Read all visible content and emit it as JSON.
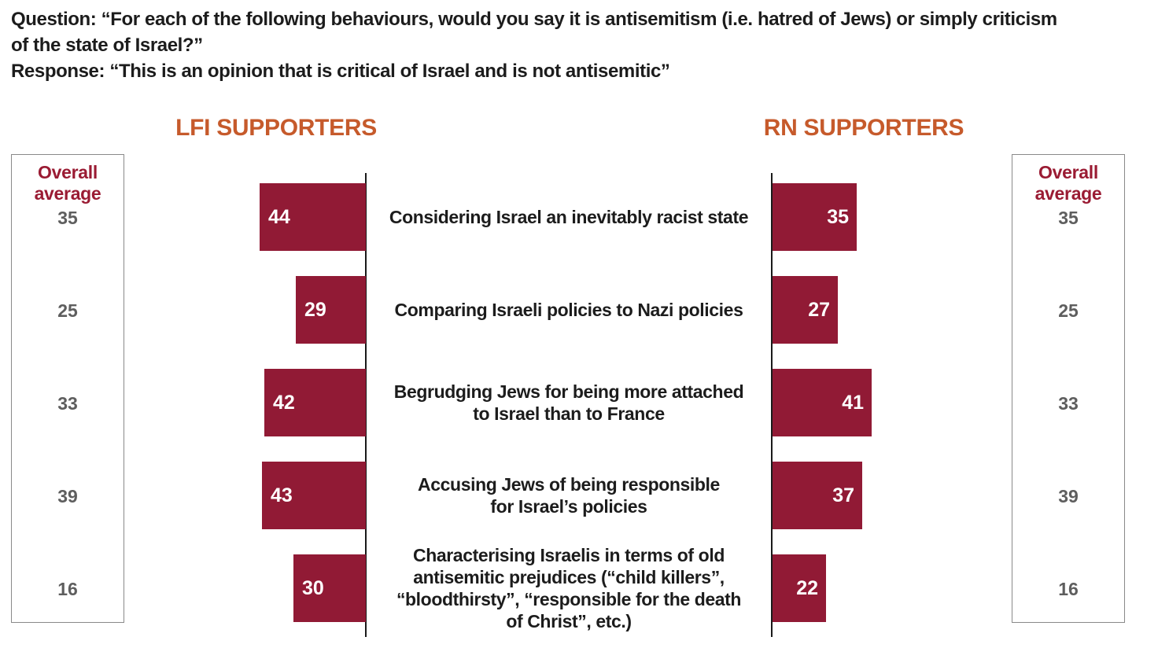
{
  "header": {
    "lines": [
      "Question: “For each of the following behaviours, would you say it is antisemitism (i.e. hatred of Jews) or simply criticism",
      "of the state of Israel?”",
      "Response: “This is an opinion that is critical of Israel and is not antisemitic”"
    ]
  },
  "chart_data": {
    "type": "bar",
    "orientation": "horizontal-mirrored",
    "grid": false,
    "legend": "none",
    "panel_titles": {
      "left": "LFI SUPPORTERS",
      "right": "RN SUPPORTERS"
    },
    "overall_average": {
      "label": "Overall average",
      "label_lines": [
        "Overall",
        "average"
      ],
      "values": [
        35,
        25,
        33,
        39,
        16
      ]
    },
    "categories": [
      "Considering Israel an inevitably racist state",
      "Comparing Israeli policies to Nazi policies",
      "Begrudging Jews for being more attached to Israel than to France",
      "Accusing Jews of being responsible for Israel’s policies",
      "Characterising Israelis in terms of old antisemitic prejudices (“child killers”, “bloodthirsty”, “responsible for the death of Christ”, etc.)"
    ],
    "category_lines": [
      [
        "Considering Israel an inevitably racist state"
      ],
      [
        "Comparing Israeli policies to Nazi policies"
      ],
      [
        "Begrudging Jews for being more attached",
        "to Israel than to France"
      ],
      [
        "Accusing Jews of being responsible",
        "for Israel’s policies"
      ],
      [
        "Characterising Israelis in terms of old",
        "antisemitic prejudices (“child killers”,",
        "“bloodthirsty”, “responsible for the death",
        "of Christ”, etc.)"
      ]
    ],
    "series": [
      {
        "name": "LFI supporters",
        "values": [
          44,
          29,
          42,
          43,
          30
        ]
      },
      {
        "name": "RN supporters",
        "values": [
          35,
          27,
          41,
          37,
          22
        ]
      }
    ],
    "values_shown_on_bars": true
  },
  "colors": {
    "bar": "#911A35",
    "panel_title": "#C65A2B",
    "overall_average_label": "#9A1B33",
    "overall_average_value": "#5E5E5E",
    "text": "#1C1C1C",
    "box_border": "#8A8A8A",
    "axis_line": "#1A1A1A",
    "bar_value_text": "#FFFFFF",
    "background": "#FFFFFF"
  }
}
